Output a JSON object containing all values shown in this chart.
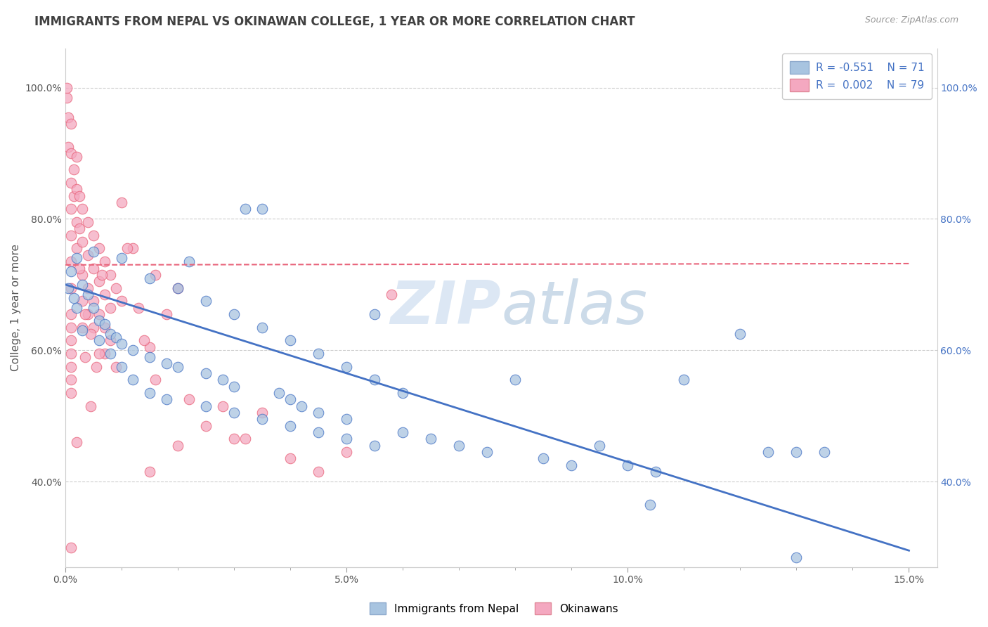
{
  "title": "IMMIGRANTS FROM NEPAL VS OKINAWAN COLLEGE, 1 YEAR OR MORE CORRELATION CHART",
  "source_text": "Source: ZipAtlas.com",
  "ylabel": "College, 1 year or more",
  "xlim": [
    0.0,
    0.155
  ],
  "ylim": [
    0.27,
    1.06
  ],
  "xtick_labels": [
    "0.0%",
    "5.0%",
    "10.0%",
    "15.0%"
  ],
  "xtick_values": [
    0.0,
    0.05,
    0.1,
    0.15
  ],
  "ytick_labels": [
    "40.0%",
    "60.0%",
    "80.0%",
    "100.0%"
  ],
  "ytick_values": [
    0.4,
    0.6,
    0.8,
    1.0
  ],
  "ytick_right_labels": [
    "40.0%",
    "60.0%",
    "80.0%",
    "100.0%"
  ],
  "ytick_right_values": [
    0.4,
    0.6,
    0.8,
    1.0
  ],
  "color_blue": "#a8c4e0",
  "color_pink": "#f4a8c0",
  "line_blue": "#4472c4",
  "line_pink": "#e8637a",
  "watermark": "ZIPatlas",
  "blue_scatter": [
    [
      0.0005,
      0.695
    ],
    [
      0.001,
      0.72
    ],
    [
      0.0015,
      0.68
    ],
    [
      0.002,
      0.74
    ],
    [
      0.002,
      0.665
    ],
    [
      0.003,
      0.7
    ],
    [
      0.003,
      0.63
    ],
    [
      0.004,
      0.685
    ],
    [
      0.005,
      0.665
    ],
    [
      0.005,
      0.75
    ],
    [
      0.006,
      0.645
    ],
    [
      0.006,
      0.615
    ],
    [
      0.007,
      0.64
    ],
    [
      0.008,
      0.625
    ],
    [
      0.008,
      0.595
    ],
    [
      0.009,
      0.62
    ],
    [
      0.01,
      0.61
    ],
    [
      0.01,
      0.575
    ],
    [
      0.01,
      0.74
    ],
    [
      0.012,
      0.6
    ],
    [
      0.012,
      0.555
    ],
    [
      0.015,
      0.59
    ],
    [
      0.015,
      0.535
    ],
    [
      0.015,
      0.71
    ],
    [
      0.018,
      0.58
    ],
    [
      0.018,
      0.525
    ],
    [
      0.02,
      0.575
    ],
    [
      0.02,
      0.695
    ],
    [
      0.022,
      0.735
    ],
    [
      0.025,
      0.565
    ],
    [
      0.025,
      0.675
    ],
    [
      0.025,
      0.515
    ],
    [
      0.028,
      0.555
    ],
    [
      0.03,
      0.545
    ],
    [
      0.03,
      0.655
    ],
    [
      0.03,
      0.505
    ],
    [
      0.032,
      0.815
    ],
    [
      0.035,
      0.815
    ],
    [
      0.035,
      0.635
    ],
    [
      0.035,
      0.495
    ],
    [
      0.038,
      0.535
    ],
    [
      0.04,
      0.525
    ],
    [
      0.04,
      0.615
    ],
    [
      0.04,
      0.485
    ],
    [
      0.042,
      0.515
    ],
    [
      0.045,
      0.505
    ],
    [
      0.045,
      0.595
    ],
    [
      0.045,
      0.475
    ],
    [
      0.05,
      0.495
    ],
    [
      0.05,
      0.575
    ],
    [
      0.05,
      0.465
    ],
    [
      0.055,
      0.655
    ],
    [
      0.055,
      0.555
    ],
    [
      0.055,
      0.455
    ],
    [
      0.06,
      0.475
    ],
    [
      0.06,
      0.535
    ],
    [
      0.065,
      0.465
    ],
    [
      0.07,
      0.455
    ],
    [
      0.075,
      0.445
    ],
    [
      0.08,
      0.555
    ],
    [
      0.085,
      0.435
    ],
    [
      0.09,
      0.425
    ],
    [
      0.095,
      0.455
    ],
    [
      0.1,
      0.425
    ],
    [
      0.105,
      0.415
    ],
    [
      0.11,
      0.555
    ],
    [
      0.12,
      0.625
    ],
    [
      0.125,
      0.445
    ],
    [
      0.13,
      0.445
    ],
    [
      0.135,
      0.445
    ],
    [
      0.104,
      0.365
    ],
    [
      0.13,
      0.285
    ]
  ],
  "pink_scatter": [
    [
      0.0002,
      0.985
    ],
    [
      0.0003,
      1.0
    ],
    [
      0.0005,
      0.955
    ],
    [
      0.0005,
      0.91
    ],
    [
      0.001,
      0.945
    ],
    [
      0.001,
      0.9
    ],
    [
      0.001,
      0.855
    ],
    [
      0.001,
      0.815
    ],
    [
      0.001,
      0.775
    ],
    [
      0.001,
      0.735
    ],
    [
      0.001,
      0.695
    ],
    [
      0.001,
      0.655
    ],
    [
      0.001,
      0.635
    ],
    [
      0.001,
      0.615
    ],
    [
      0.001,
      0.595
    ],
    [
      0.001,
      0.575
    ],
    [
      0.001,
      0.555
    ],
    [
      0.001,
      0.535
    ],
    [
      0.0015,
      0.875
    ],
    [
      0.0015,
      0.835
    ],
    [
      0.002,
      0.895
    ],
    [
      0.002,
      0.845
    ],
    [
      0.002,
      0.795
    ],
    [
      0.002,
      0.755
    ],
    [
      0.0025,
      0.835
    ],
    [
      0.0025,
      0.785
    ],
    [
      0.003,
      0.815
    ],
    [
      0.003,
      0.765
    ],
    [
      0.003,
      0.715
    ],
    [
      0.003,
      0.675
    ],
    [
      0.003,
      0.635
    ],
    [
      0.004,
      0.795
    ],
    [
      0.004,
      0.745
    ],
    [
      0.004,
      0.695
    ],
    [
      0.004,
      0.655
    ],
    [
      0.005,
      0.775
    ],
    [
      0.005,
      0.725
    ],
    [
      0.005,
      0.675
    ],
    [
      0.005,
      0.635
    ],
    [
      0.006,
      0.755
    ],
    [
      0.006,
      0.705
    ],
    [
      0.006,
      0.655
    ],
    [
      0.007,
      0.735
    ],
    [
      0.007,
      0.685
    ],
    [
      0.007,
      0.635
    ],
    [
      0.008,
      0.715
    ],
    [
      0.008,
      0.665
    ],
    [
      0.009,
      0.695
    ],
    [
      0.01,
      0.825
    ],
    [
      0.01,
      0.675
    ],
    [
      0.012,
      0.755
    ],
    [
      0.013,
      0.665
    ],
    [
      0.015,
      0.605
    ],
    [
      0.015,
      0.415
    ],
    [
      0.016,
      0.555
    ],
    [
      0.018,
      0.655
    ],
    [
      0.02,
      0.695
    ],
    [
      0.02,
      0.455
    ],
    [
      0.022,
      0.525
    ],
    [
      0.025,
      0.485
    ],
    [
      0.028,
      0.515
    ],
    [
      0.032,
      0.465
    ],
    [
      0.035,
      0.505
    ],
    [
      0.04,
      0.435
    ],
    [
      0.045,
      0.415
    ],
    [
      0.05,
      0.445
    ],
    [
      0.058,
      0.685
    ],
    [
      0.03,
      0.465
    ],
    [
      0.001,
      0.3
    ],
    [
      0.002,
      0.46
    ],
    [
      0.0035,
      0.59
    ],
    [
      0.0045,
      0.515
    ],
    [
      0.0055,
      0.575
    ],
    [
      0.007,
      0.595
    ],
    [
      0.009,
      0.575
    ],
    [
      0.011,
      0.755
    ],
    [
      0.014,
      0.615
    ],
    [
      0.0025,
      0.725
    ],
    [
      0.0035,
      0.655
    ],
    [
      0.0045,
      0.625
    ],
    [
      0.006,
      0.595
    ],
    [
      0.008,
      0.615
    ],
    [
      0.0065,
      0.715
    ],
    [
      0.016,
      0.715
    ]
  ],
  "blue_trendline_x": [
    0.0,
    0.15
  ],
  "blue_trendline_y": [
    0.7,
    0.295
  ],
  "pink_trendline_x": [
    0.0,
    0.15
  ],
  "pink_trendline_y": [
    0.73,
    0.732
  ],
  "grid_color": "#cccccc",
  "background_color": "#ffffff",
  "legend_box_blue": "#a8c4e0",
  "legend_box_pink": "#f4a8c0",
  "legend_text_color": "#4472c4",
  "title_color": "#404040",
  "title_fontsize": 12,
  "axis_label_fontsize": 11,
  "tick_fontsize": 10,
  "legend_fontsize": 11,
  "source_fontsize": 9
}
